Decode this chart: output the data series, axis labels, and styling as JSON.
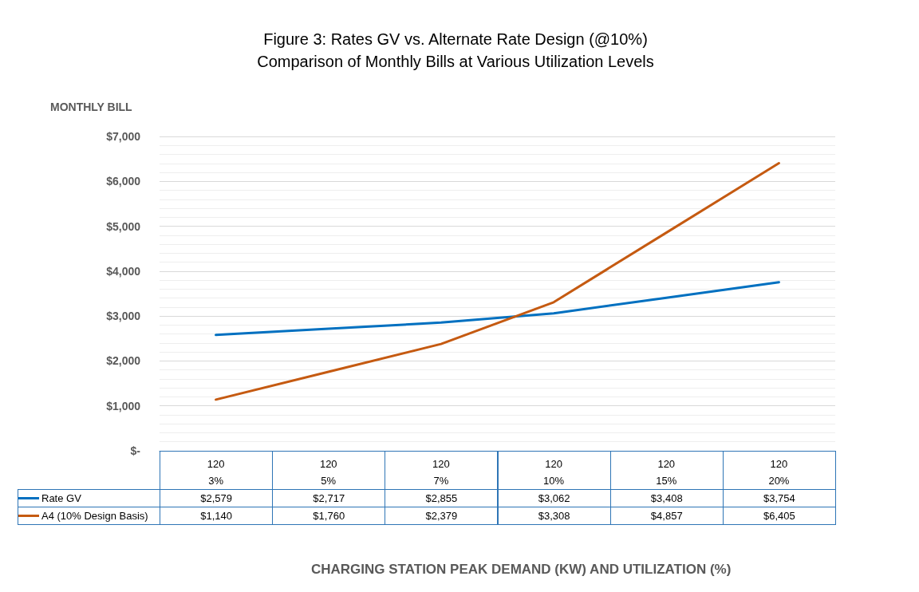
{
  "chart_data": {
    "type": "line",
    "title": "Figure 3: Rates GV vs. Alternate Rate Design (@10%)",
    "subtitle": "Comparison of Monthly Bills at Various Utilization Levels",
    "ylabel": "MONTHLY BILL",
    "annotations": [
      "CHARGING STATION PEAK DEMAND (KW) AND UTILIZATION (%)"
    ],
    "categories": [
      "120\n3%",
      "120\n5%",
      "120\n7%",
      "120\n10%",
      "120\n15%",
      "120\n20%"
    ],
    "series": [
      {
        "name": "Rate GV",
        "color": "#0070c0",
        "values": [
          2579,
          2717,
          2855,
          3062,
          3408,
          3754
        ],
        "value_labels": [
          "$2,579",
          "$2,717",
          "$2,855",
          "$3,062",
          "$3,408",
          "$3,754"
        ]
      },
      {
        "name": "A4 (10% Design Basis)",
        "color": "#c55a11",
        "values": [
          1140,
          1760,
          2379,
          3308,
          4857,
          6405
        ],
        "value_labels": [
          "$1,140",
          "$1,760",
          "$2,379",
          "$3,308",
          "$4,857",
          "$6,405"
        ]
      }
    ],
    "ylim": [
      0,
      7000
    ],
    "yticks": [
      {
        "value": 0,
        "label": "$-"
      },
      {
        "value": 1000,
        "label": "$1,000"
      },
      {
        "value": 2000,
        "label": "$2,000"
      },
      {
        "value": 3000,
        "label": "$3,000"
      },
      {
        "value": 4000,
        "label": "$4,000"
      },
      {
        "value": 5000,
        "label": "$5,000"
      },
      {
        "value": 6000,
        "label": "$6,000"
      },
      {
        "value": 7000,
        "label": "$7,000"
      }
    ],
    "grid": true,
    "legend": "bottom left",
    "marker": "none",
    "line_style": "solid"
  }
}
